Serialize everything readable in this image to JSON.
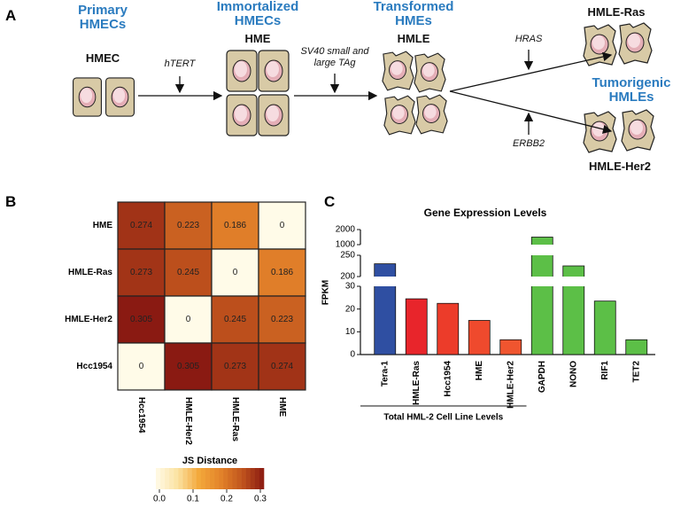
{
  "panel_labels": [
    "A",
    "B",
    "C"
  ],
  "diagram": {
    "stages": [
      {
        "title": "Primary HMECs",
        "label": "HMEC"
      },
      {
        "title": "Immortalized HMECs",
        "label": "HME"
      },
      {
        "title": "Transformed HMEs",
        "label": "HMLE"
      },
      {
        "label": "HMLE-Ras"
      },
      {
        "label": "HMLE-Her2"
      }
    ],
    "group_title": "Tumorigenic HMLEs",
    "steps": [
      "hTERT",
      "SV40 small and large TAg",
      "HRAS",
      "ERBB2"
    ]
  },
  "chart_data": [
    {
      "type": "heatmap",
      "rows": [
        "HME",
        "HMLE-Ras",
        "HMLE-Her2",
        "Hcc1954"
      ],
      "columns": [
        "Hcc1954",
        "HMLE-Her2",
        "HMLE-Ras",
        "HME"
      ],
      "values": [
        [
          0.274,
          0.223,
          0.186,
          0
        ],
        [
          0.273,
          0.245,
          0,
          0.186
        ],
        [
          0.305,
          0,
          0.245,
          0.223
        ],
        [
          0,
          0.305,
          0.273,
          0.274
        ]
      ],
      "colorbar_title": "JS Distance",
      "zlim": [
        0,
        0.3
      ],
      "zticks": [
        {
          "value": 0,
          "label": "0.0"
        },
        0.1,
        0.2,
        0.3
      ],
      "colors": [
        "#fffbe8",
        "#fbe2a2",
        "#f3a83a",
        "#e3832a",
        "#c0541d",
        "#8a1a12"
      ]
    },
    {
      "type": "bar",
      "title": "Gene Expression Levels",
      "ylabel": "FPKM",
      "categories": [
        "Tera-1",
        "HMLE-Ras",
        "Hcc1954",
        "HME",
        "HMLE-Her2",
        "GAPDH",
        "NONO",
        "RIF1",
        "TET2"
      ],
      "values": [
        230,
        24.5,
        22.5,
        15,
        6.5,
        1500,
        225,
        23.5,
        6.5
      ],
      "colors": [
        "#2f4fa2",
        "#e8252b",
        "#ec3c2a",
        "#ef4a2d",
        "#f0552f",
        "#5cbf47",
        "#5cbf47",
        "#5cbf47",
        "#5cbf47"
      ],
      "ylim_segments": [
        [
          0,
          30
        ],
        [
          200,
          250
        ],
        [
          1000,
          2000
        ]
      ],
      "yticks": [
        0,
        10,
        20,
        30,
        200,
        250,
        1000,
        2000
      ],
      "group_label": "Total HML-2 Cell Line Levels"
    }
  ]
}
